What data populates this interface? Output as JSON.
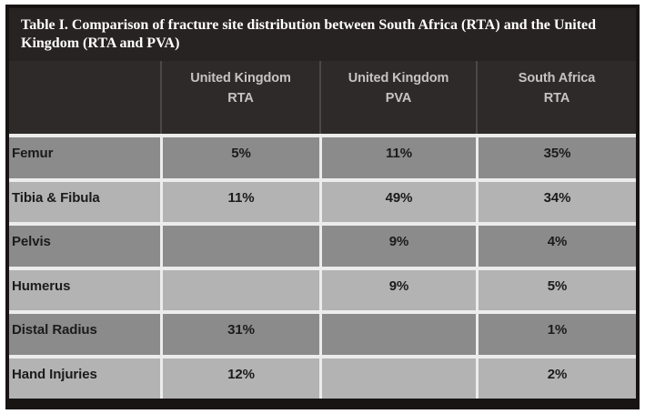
{
  "caption": {
    "line1": "Table I. Comparison of fracture site distribution between South Africa (RTA) and the United",
    "line2": "Kingdom (RTA and PVA)"
  },
  "table": {
    "columns": [
      {
        "line1": "United Kingdom",
        "line2": "RTA"
      },
      {
        "line1": "United Kingdom",
        "line2": "PVA"
      },
      {
        "line1": "South Africa",
        "line2": "RTA"
      }
    ],
    "rows": [
      {
        "label": "Femur",
        "values": [
          "5%",
          "11%",
          "35%"
        ]
      },
      {
        "label": "Tibia & Fibula",
        "values": [
          "11%",
          "49%",
          "34%"
        ]
      },
      {
        "label": "Pelvis",
        "values": [
          "",
          "9%",
          "4%"
        ]
      },
      {
        "label": "Humerus",
        "values": [
          "",
          "9%",
          "5%"
        ]
      },
      {
        "label": "Distal Radius",
        "values": [
          "31%",
          "",
          "1%"
        ]
      },
      {
        "label": "Hand Injuries",
        "values": [
          "12%",
          "",
          "2%"
        ]
      }
    ]
  },
  "chart_data": {
    "type": "table",
    "title": "Table I. Comparison of fracture site distribution between South Africa (RTA) and the United Kingdom (RTA and PVA)",
    "categories": [
      "Femur",
      "Tibia & Fibula",
      "Pelvis",
      "Humerus",
      "Distal Radius",
      "Hand Injuries"
    ],
    "series": [
      {
        "name": "United Kingdom RTA",
        "values": [
          "5%",
          "11%",
          "",
          "",
          "31%",
          "12%"
        ]
      },
      {
        "name": "United Kingdom PVA",
        "values": [
          "11%",
          "49%",
          "9%",
          "9%",
          "",
          ""
        ]
      },
      {
        "name": "South Africa RTA",
        "values": [
          "35%",
          "34%",
          "4%",
          "5%",
          "1%",
          "2%"
        ]
      }
    ]
  },
  "colors": {
    "frame": "#181414",
    "title_band": "#282323",
    "caption_text": "#ffffff",
    "header_bg": "#2f2a2a",
    "header_text": "#c6c3c1",
    "header_divider": "#4d4848",
    "row_dark": "#8b8b8b",
    "row_light": "#b3b3b3",
    "separator": "#ececec",
    "cell_text": "#1b1b1b"
  }
}
